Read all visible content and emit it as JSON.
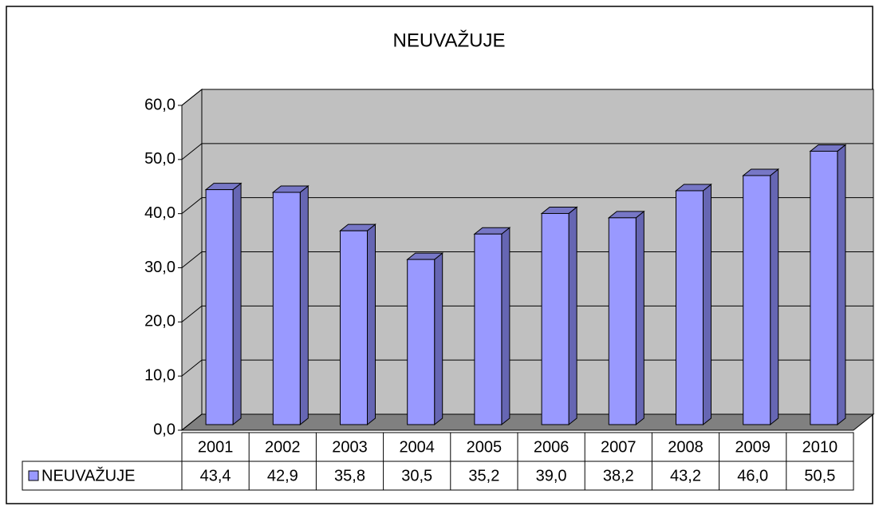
{
  "chart_data": {
    "type": "bar3d",
    "title": "NEUVAŽUJE",
    "categories": [
      "2001",
      "2002",
      "2003",
      "2004",
      "2005",
      "2006",
      "2007",
      "2008",
      "2009",
      "2010"
    ],
    "series": [
      {
        "name": "NEUVAŽUJE",
        "color": "#9999ff",
        "values": [
          43.4,
          42.9,
          35.8,
          30.5,
          35.2,
          39.0,
          38.2,
          43.2,
          46.0,
          50.5
        ],
        "value_labels": [
          "43,4",
          "42,9",
          "35,8",
          "30,5",
          "35,2",
          "39,0",
          "38,2",
          "43,2",
          "46,0",
          "50,5"
        ]
      }
    ],
    "ylim": [
      0,
      60
    ],
    "yticks": [
      {
        "value": 0,
        "label": "0,0"
      },
      {
        "value": 10,
        "label": "10,0"
      },
      {
        "value": 20,
        "label": "20,0"
      },
      {
        "value": 30,
        "label": "30,0"
      },
      {
        "value": 40,
        "label": "40,0"
      },
      {
        "value": 50,
        "label": "50,0"
      },
      {
        "value": 60,
        "label": "60,0"
      }
    ],
    "grid": true
  }
}
